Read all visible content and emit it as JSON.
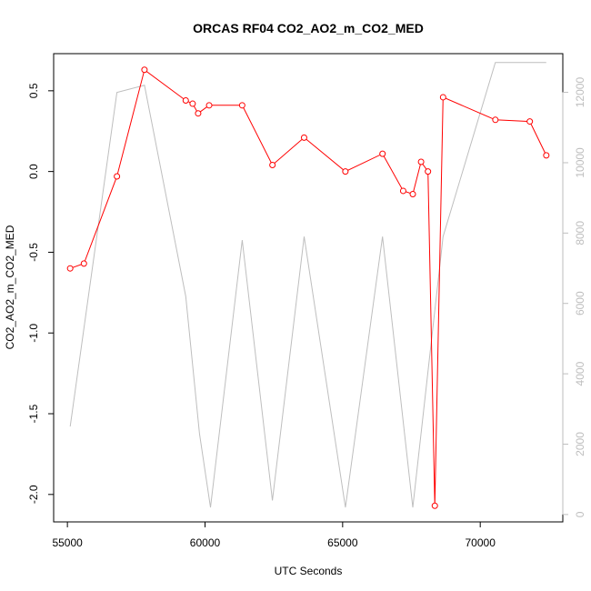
{
  "chart_data": {
    "type": "line",
    "title": "ORCAS RF04 CO2_AO2_m_CO2_MED",
    "xlabel": "UTC Seconds",
    "ylabel": "CO2_AO2_m_CO2_MED",
    "xlim": [
      54500,
      73000
    ],
    "ylim": [
      -2.17,
      0.73
    ],
    "y2lim": [
      -210,
      13100
    ],
    "x_ticks": [
      55000,
      60000,
      65000,
      70000
    ],
    "y_ticks": [
      -2.0,
      -1.5,
      -1.0,
      -0.5,
      0.0,
      0.5
    ],
    "y_tick_labels": [
      "-2.0",
      "-1.5",
      "-1.0",
      "-0.5",
      "0.0",
      "0.5"
    ],
    "y2_ticks": [
      0,
      2000,
      4000,
      6000,
      8000,
      10000,
      12000
    ],
    "series": [
      {
        "color": "#ff0000",
        "axis": "left",
        "style": "line+points",
        "x": [
          55100,
          55600,
          56800,
          57800,
          59300,
          59550,
          59750,
          60150,
          61350,
          62450,
          63600,
          65100,
          66450,
          67200,
          67550,
          67850,
          68100,
          68350,
          68650,
          70550,
          71800,
          72400
        ],
        "y": [
          -0.6,
          -0.57,
          -0.03,
          0.63,
          0.44,
          0.42,
          0.36,
          0.41,
          0.41,
          0.04,
          0.21,
          0.0,
          0.11,
          -0.12,
          -0.14,
          0.06,
          0.0,
          -2.07,
          0.46,
          0.32,
          0.31,
          0.1
        ]
      },
      {
        "color": "#bebebe",
        "axis": "right",
        "style": "line",
        "x": [
          55100,
          56800,
          57800,
          59300,
          59800,
          60200,
          61350,
          62450,
          63600,
          65100,
          66450,
          67550,
          68650,
          70550,
          72400
        ],
        "y": [
          2500,
          12000,
          12200,
          6200,
          2300,
          200,
          7800,
          400,
          7900,
          200,
          7900,
          200,
          7900,
          12850,
          12850
        ]
      }
    ]
  }
}
